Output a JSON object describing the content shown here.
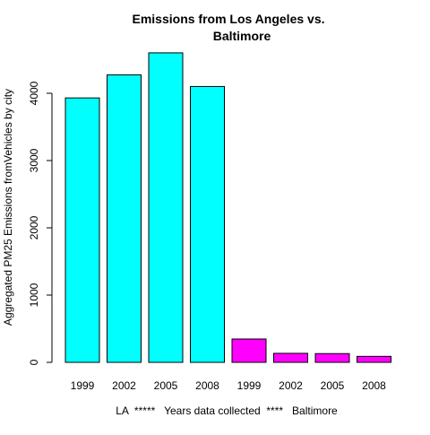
{
  "chart_data": {
    "type": "bar",
    "title": [
      "Emissions from Los Angeles vs.",
      "Baltimore"
    ],
    "xlabel": "LA  *****   Years data collected  ****   Baltimore",
    "ylabel": "Aggregated PM25 Emissions fromVehicles by city",
    "categories": [
      "1999",
      "2002",
      "2005",
      "2008",
      "1999",
      "2002",
      "2005",
      "2008"
    ],
    "values": [
      3931,
      4274,
      4601,
      4101,
      347,
      134,
      130,
      89
    ],
    "bar_colors": [
      "#00ffff",
      "#00ffff",
      "#00ffff",
      "#00ffff",
      "#ff00ff",
      "#ff00ff",
      "#ff00ff",
      "#ff00ff"
    ],
    "ylim": [
      0,
      4600
    ],
    "yticks": [
      0,
      1000,
      2000,
      3000,
      4000
    ],
    "grid": false
  }
}
